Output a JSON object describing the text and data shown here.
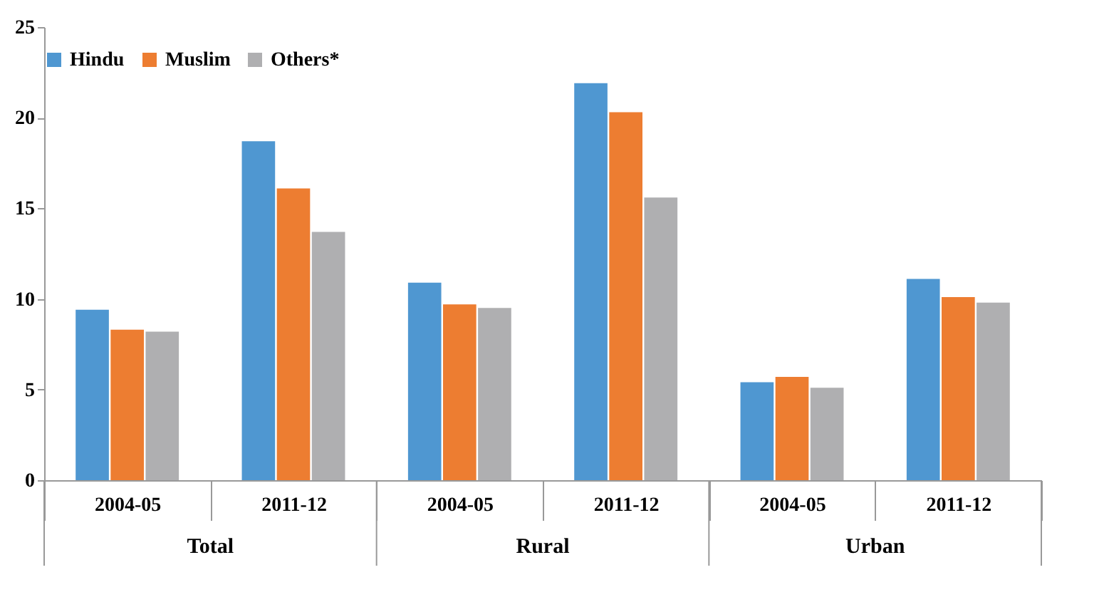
{
  "chart_data": {
    "type": "bar",
    "categories": [
      "2004-05",
      "2011-12",
      "2004-05",
      "2011-12",
      "2004-05",
      "2011-12"
    ],
    "series": [
      {
        "name": "Hindu",
        "color": "#4f97d1",
        "values": [
          9.4,
          18.7,
          10.9,
          21.9,
          5.4,
          11.1
        ]
      },
      {
        "name": "Muslim",
        "color": "#ed7d31",
        "values": [
          8.3,
          16.1,
          9.7,
          20.3,
          5.7,
          10.1
        ]
      },
      {
        "name": "Others*",
        "color": "#afafb1",
        "values": [
          8.2,
          13.7,
          9.5,
          15.6,
          5.1,
          9.8
        ]
      }
    ],
    "annotations": [
      "Total",
      "Rural",
      "Urban"
    ],
    "ylim": [
      0,
      25
    ],
    "yticks": [
      0,
      5,
      10,
      15,
      20,
      25
    ],
    "grid": false,
    "legend": "top"
  }
}
